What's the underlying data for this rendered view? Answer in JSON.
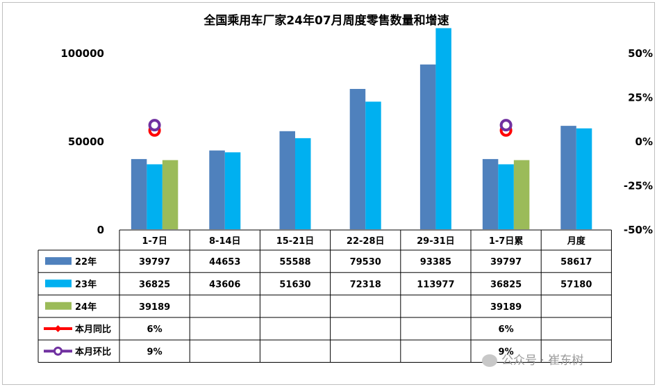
{
  "chart_data": {
    "type": "bar",
    "title": "全国乘用车厂家24年07月周度零售数量和增速",
    "categories": [
      "1-7日",
      "8-14日",
      "15-21日",
      "22-28日",
      "29-31日",
      "1-7日累",
      "月度"
    ],
    "series": [
      {
        "name": "22年",
        "color": "#4f81bd",
        "values": [
          39797,
          44653,
          55588,
          79530,
          93385,
          39797,
          58617
        ]
      },
      {
        "name": "23年",
        "color": "#00b0f0",
        "values": [
          36825,
          43606,
          51630,
          72318,
          113977,
          36825,
          57180
        ]
      },
      {
        "name": "24年",
        "color": "#9bbb59",
        "values": [
          39189,
          null,
          null,
          null,
          null,
          39189,
          null
        ]
      }
    ],
    "line_series": [
      {
        "name": "本月同比",
        "color": "#ff0000",
        "values": [
          0.06,
          null,
          null,
          null,
          null,
          0.06,
          null
        ],
        "labels": [
          "6%",
          "",
          "",
          "",
          "",
          "6%",
          ""
        ]
      },
      {
        "name": "本月环比",
        "color": "#7030a0",
        "values": [
          0.09,
          null,
          null,
          null,
          null,
          0.09,
          null
        ],
        "labels": [
          "9%",
          "",
          "",
          "",
          "",
          "9%",
          ""
        ]
      }
    ],
    "y_left": {
      "min": 0,
      "max": 100000,
      "ticks": [
        "0",
        "50000",
        "100000"
      ]
    },
    "y_right": {
      "min": -0.5,
      "max": 0.5,
      "ticks": [
        "-50%",
        "-25%",
        "0%",
        "25%",
        "50%"
      ]
    },
    "grid": false,
    "legend": "data-table"
  },
  "watermark": "公众号 · 崔东树"
}
